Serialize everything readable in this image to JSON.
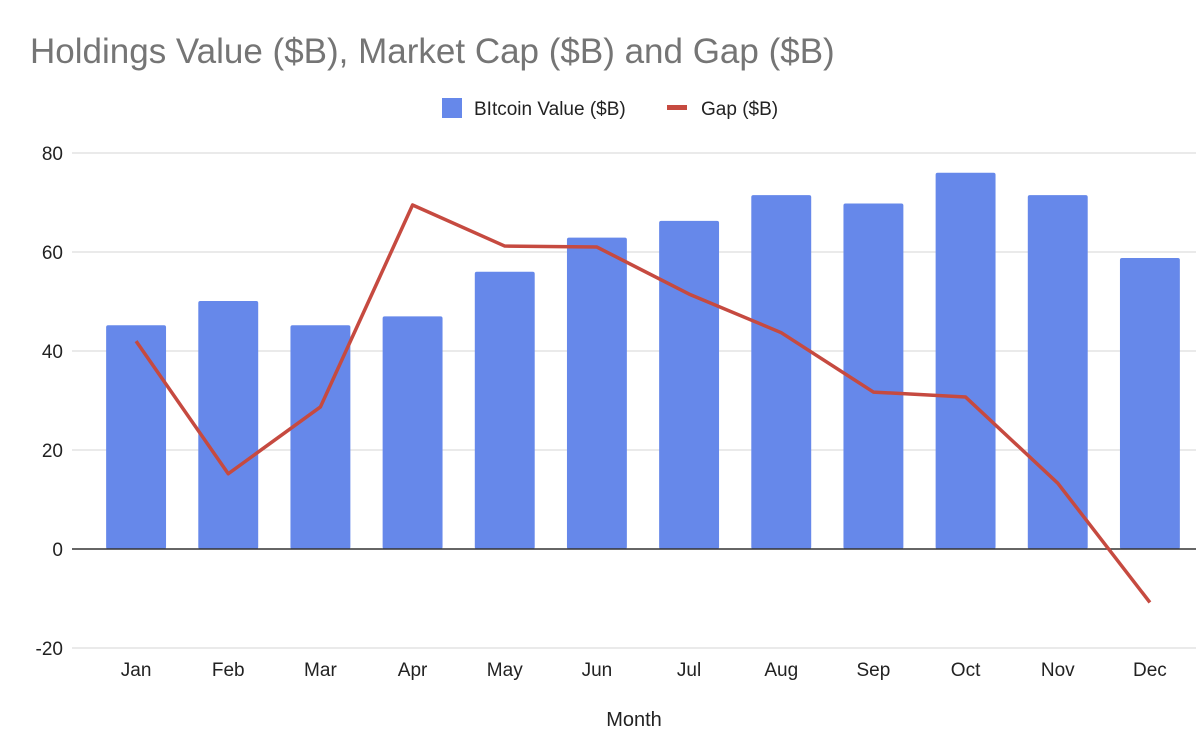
{
  "chart_data": {
    "type": "bar",
    "title": "Holdings Value ($B), Market Cap ($B) and Gap ($B)",
    "xlabel": "Month",
    "ylabel": "",
    "ylim": [
      -20,
      80
    ],
    "yticks": [
      -20,
      0,
      20,
      40,
      60,
      80
    ],
    "grid": true,
    "legend_position": "top-center",
    "categories": [
      "Jan",
      "Feb",
      "Mar",
      "Apr",
      "May",
      "Jun",
      "Jul",
      "Aug",
      "Sep",
      "Oct",
      "Nov",
      "Dec"
    ],
    "series": [
      {
        "name": "BItcoin Value ($B)",
        "type": "bar",
        "color": "#6688ea",
        "values": [
          45.2,
          50.1,
          45.2,
          47.0,
          56.0,
          62.9,
          66.3,
          71.5,
          69.8,
          76.0,
          71.5,
          58.8
        ]
      },
      {
        "name": "Gap ($B)",
        "type": "line",
        "color": "#c64a40",
        "values": [
          42.0,
          15.2,
          28.7,
          69.5,
          61.2,
          61.0,
          51.5,
          43.7,
          31.7,
          30.7,
          13.3,
          -10.8
        ]
      }
    ]
  }
}
